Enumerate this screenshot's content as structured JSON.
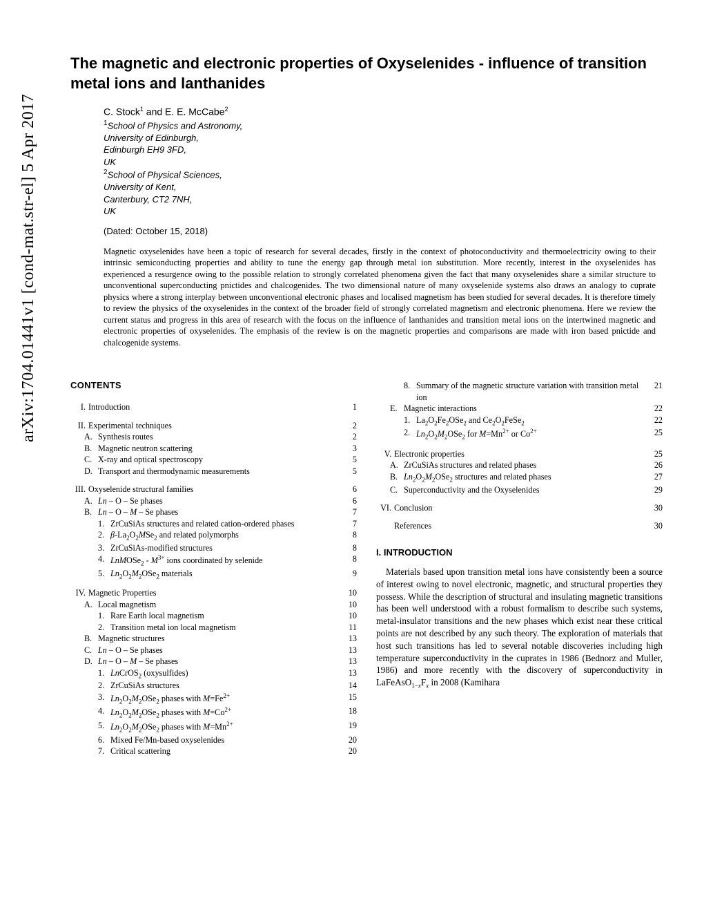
{
  "arxiv_label": "arXiv:1704.01441v1  [cond-mat.str-el]  5 Apr 2017",
  "title": "The magnetic and electronic properties of Oxyselenides - influence of transition metal ions and lanthanides",
  "authors_line": "C. Stock¹ and E. E. McCabe²",
  "affiliations": [
    {
      "sup": "1",
      "text": "School of Physics and Astronomy,"
    },
    {
      "sup": "",
      "text": "University of Edinburgh,"
    },
    {
      "sup": "",
      "text": "Edinburgh EH9 3FD,"
    },
    {
      "sup": "",
      "text": "UK"
    },
    {
      "sup": "2",
      "text": "School of Physical Sciences,"
    },
    {
      "sup": "",
      "text": "University of Kent,"
    },
    {
      "sup": "",
      "text": "Canterbury, CT2 7NH,"
    },
    {
      "sup": "",
      "text": "UK"
    }
  ],
  "dated": "(Dated: October 15, 2018)",
  "abstract": "Magnetic oxyselenides have been a topic of research for several decades, firstly in the context of photoconductivity and thermoelectricity owing to their intrinsic semiconducting properties and ability to tune the energy gap through metal ion substitution. More recently, interest in the oxyselenides has experienced a resurgence owing to the possible relation to strongly correlated phenomena given the fact that many oxyselenides share a similar structure to unconventional superconducting pnictides and chalcogenides. The two dimensional nature of many oxyselenide systems also draws an analogy to cuprate physics where a strong interplay between unconventional electronic phases and localised magnetism has been studied for several decades. It is therefore timely to review the physics of the oxyselenides in the context of the broader field of strongly correlated magnetism and electronic phenomena. Here we review the current status and progress in this area of research with the focus on the influence of lanthanides and transition metal ions on the intertwined magnetic and electronic properties of oxyselenides. The emphasis of the review is on the magnetic properties and comparisons are made with iron based pnictide and chalcogenide systems.",
  "contents_label": "CONTENTS",
  "toc_left": [
    {
      "type": "I",
      "label": "I.",
      "text": "Introduction",
      "page": "1"
    },
    {
      "type": "spacer"
    },
    {
      "type": "I",
      "label": "II.",
      "text": "Experimental techniques",
      "page": "2"
    },
    {
      "type": "A",
      "label": "A.",
      "text": "Synthesis routes",
      "page": "2"
    },
    {
      "type": "A",
      "label": "B.",
      "text": "Magnetic neutron scattering",
      "page": "3"
    },
    {
      "type": "A",
      "label": "C.",
      "text": "X-ray and optical spectroscopy",
      "page": "5"
    },
    {
      "type": "A",
      "label": "D.",
      "text": "Transport and thermodynamic measurements",
      "page": "5"
    },
    {
      "type": "spacer"
    },
    {
      "type": "I",
      "label": "III.",
      "text": "Oxyselenide structural families",
      "page": "6"
    },
    {
      "type": "A",
      "label": "A.",
      "html": "<i>Ln</i> – O – Se phases",
      "page": "6"
    },
    {
      "type": "A",
      "label": "B.",
      "html": "<i>Ln</i> – O – <i>M</i> – Se phases",
      "page": "7"
    },
    {
      "type": "1",
      "label": "1.",
      "text": "ZrCuSiAs structures and related cation-ordered phases",
      "page": "7"
    },
    {
      "type": "1",
      "label": "2.",
      "html": "<i>β</i>-La<span class='sub'>2</span>O<span class='sub'>2</span><i>M</i>Se<span class='sub'>2</span> and related polymorphs",
      "page": "8"
    },
    {
      "type": "1",
      "label": "3.",
      "text": "ZrCuSiAs-modified structures",
      "page": "8"
    },
    {
      "type": "1",
      "label": "4.",
      "html": "<i>LnM</i>OSe<span class='sub'>2</span> - <i>M</i><span class='sup'>3+</span> ions coordinated by selenide",
      "page": "8"
    },
    {
      "type": "1",
      "label": "5.",
      "html": "<i>Ln</i><span class='sub'>2</span>O<span class='sub'>2</span><i>M</i><span class='sub'>2</span>OSe<span class='sub'>2</span> materials",
      "page": "9"
    },
    {
      "type": "spacer"
    },
    {
      "type": "I",
      "label": "IV.",
      "text": "Magnetic Properties",
      "page": "10"
    },
    {
      "type": "A",
      "label": "A.",
      "text": "Local magnetism",
      "page": "10"
    },
    {
      "type": "1",
      "label": "1.",
      "text": "Rare Earth local magnetism",
      "page": "10"
    },
    {
      "type": "1",
      "label": "2.",
      "text": "Transition metal ion local magnetism",
      "page": "11"
    },
    {
      "type": "A",
      "label": "B.",
      "text": "Magnetic structures",
      "page": "13"
    },
    {
      "type": "A",
      "label": "C.",
      "html": "<i>Ln</i> – O – Se phases",
      "page": "13"
    },
    {
      "type": "A",
      "label": "D.",
      "html": "<i>Ln</i> – O – <i>M</i> – Se phases",
      "page": "13"
    },
    {
      "type": "1",
      "label": "1.",
      "html": "<i>Ln</i>CrOS<span class='sub'>2</span> (oxysulfides)",
      "page": "13"
    },
    {
      "type": "1",
      "label": "2.",
      "text": "ZrCuSiAs structures",
      "page": "14"
    },
    {
      "type": "1",
      "label": "3.",
      "html": "<i>Ln</i><span class='sub'>2</span>O<span class='sub'>2</span><i>M</i><span class='sub'>2</span>OSe<span class='sub'>2</span> phases with <i>M</i>=Fe<span class='sup'>2+</span>",
      "page": "15"
    },
    {
      "type": "1",
      "label": "4.",
      "html": "<i>Ln</i><span class='sub'>2</span>O<span class='sub'>2</span><i>M</i><span class='sub'>2</span>OSe<span class='sub'>2</span> phases with <i>M</i>=Co<span class='sup'>2+</span>",
      "page": "18"
    },
    {
      "type": "1",
      "label": "5.",
      "html": "<i>Ln</i><span class='sub'>2</span>O<span class='sub'>2</span><i>M</i><span class='sub'>2</span>OSe<span class='sub'>2</span> phases with <i>M</i>=Mn<span class='sup'>2+</span>",
      "page": "19"
    },
    {
      "type": "1",
      "label": "6.",
      "text": "Mixed Fe/Mn-based oxyselenides",
      "page": "20"
    },
    {
      "type": "1",
      "label": "7.",
      "text": "Critical scattering",
      "page": "20"
    }
  ],
  "toc_right": [
    {
      "type": "1",
      "label": "8.",
      "text": "Summary of the magnetic structure variation with transition metal ion",
      "page": "21"
    },
    {
      "type": "A",
      "label": "E.",
      "text": "Magnetic interactions",
      "page": "22"
    },
    {
      "type": "1",
      "label": "1.",
      "html": "La<span class='sub'>2</span>O<span class='sub'>2</span>Fe<span class='sub'>2</span>OSe<span class='sub'>2</span> and Ce<span class='sub'>2</span>O<span class='sub'>2</span>FeSe<span class='sub'>2</span>",
      "page": "22"
    },
    {
      "type": "1",
      "label": "2.",
      "html": "<i>Ln</i><span class='sub'>2</span>O<span class='sub'>2</span><i>M</i><span class='sub'>2</span>OSe<span class='sub'>2</span> for <i>M</i>=Mn<span class='sup'>2+</span> or Co<span class='sup'>2+</span>",
      "page": "25"
    },
    {
      "type": "spacer"
    },
    {
      "type": "I",
      "label": "V.",
      "text": "Electronic properties",
      "page": "25"
    },
    {
      "type": "A",
      "label": "A.",
      "text": "ZrCuSiAs structures and related phases",
      "page": "26"
    },
    {
      "type": "A",
      "label": "B.",
      "html": "<i>Ln</i><span class='sub'>2</span>O<span class='sub'>2</span><i>M</i><span class='sub'>2</span>OSe<span class='sub'>2</span> structures and related phases",
      "page": "27"
    },
    {
      "type": "A",
      "label": "C.",
      "text": "Superconductivity and the Oxyselenides",
      "page": "29"
    },
    {
      "type": "spacer"
    },
    {
      "type": "I",
      "label": "VI.",
      "text": "Conclusion",
      "page": "30"
    },
    {
      "type": "spacer"
    },
    {
      "type": "ref",
      "label": "",
      "text": "References",
      "page": "30"
    }
  ],
  "intro_heading": "I. INTRODUCTION",
  "intro_body_html": "Materials based upon transition metal ions have consistently been a source of interest owing to novel electronic, magnetic, and structural properties they possess. While the description of structural and insulating magnetic transitions has been well understood with a robust formalism to describe such systems, metal-insulator transitions and the new phases which exist near these critical points are not described by any such theory. The exploration of materials that host such transitions has led to several notable discoveries including high temperature superconductivity in the cuprates in 1986 (Bednorz and Muller, 1986) and more recently with the discovery of superconductivity in LaFeAsO<span class='sub'>1−<i>x</i></span>F<span class='sub'><i>x</i></span> in 2008 (Kamihara"
}
